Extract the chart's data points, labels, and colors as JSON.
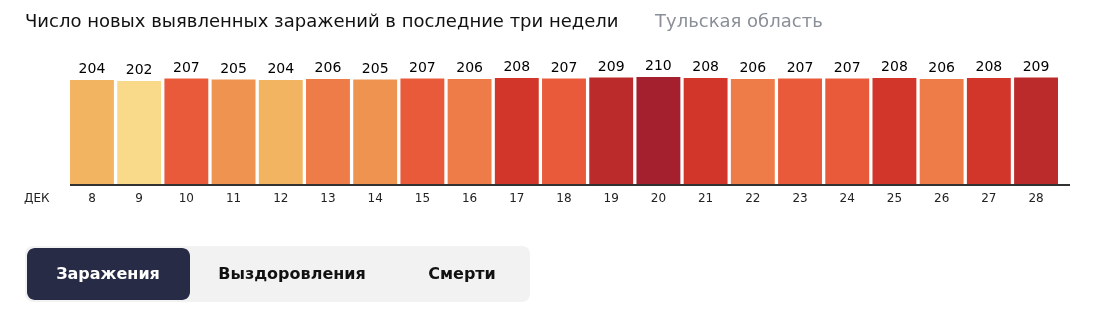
{
  "chart_data": {
    "type": "bar",
    "title": "Число новых выявленных заражений в последние три недели",
    "subtitle": "Тульская область",
    "categories": [
      "8",
      "9",
      "10",
      "11",
      "12",
      "13",
      "14",
      "15",
      "16",
      "17",
      "18",
      "19",
      "20",
      "21",
      "22",
      "23",
      "24",
      "25",
      "26",
      "27",
      "28"
    ],
    "values": [
      204,
      202,
      207,
      205,
      204,
      206,
      205,
      207,
      206,
      208,
      207,
      209,
      210,
      208,
      206,
      207,
      207,
      208,
      206,
      208,
      209
    ],
    "colors": [
      "#f2b461",
      "#f9d98a",
      "#e85a3a",
      "#ee9450",
      "#f2b461",
      "#ee7c48",
      "#ee9450",
      "#e85a3a",
      "#ee7c48",
      "#d2362a",
      "#e85a3a",
      "#bb2b2b",
      "#a4202e",
      "#d2362a",
      "#ee7c48",
      "#e85a3a",
      "#e85a3a",
      "#d2362a",
      "#ee7c48",
      "#d2362a",
      "#bb2b2b"
    ],
    "data_labels": true,
    "annotations": [
      "ДЕК",
      "Заражения",
      "Выздоровления",
      "Смерти"
    ]
  }
}
